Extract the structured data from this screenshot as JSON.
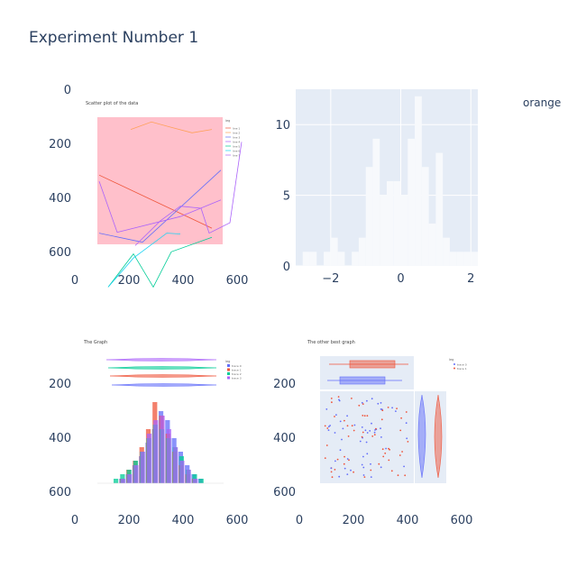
{
  "figure": {
    "title": "Experiment Number 1",
    "legend_label": "orange"
  },
  "chart_data": [
    {
      "id": "top-left",
      "type": "image",
      "description_axes": "image subplot",
      "xaxis": {
        "range": [
          0,
          640
        ],
        "ticks": [
          0,
          200,
          400,
          600
        ],
        "tick_labels": [
          "0",
          "200",
          "400",
          "600"
        ]
      },
      "yaxis": {
        "range": [
          0,
          640
        ],
        "reversed": true,
        "ticks": [
          0,
          200,
          400,
          600
        ],
        "tick_labels": [
          "0",
          "200",
          "400",
          "600"
        ]
      },
      "embedded": {
        "title": "Scatter plot of the data",
        "background": "#ffc0cb",
        "legend": {
          "title": "leg",
          "entries": [
            "line 1",
            "line 2",
            "line 3",
            "line 4",
            "line 5",
            "line 6",
            "line 7"
          ]
        },
        "lines": [
          {
            "color": "#ef553b",
            "points": [
              [
                110,
                270
              ],
              [
                235,
                398
              ]
            ]
          },
          {
            "color": "#ffa15a",
            "points": [
              [
                145,
                160
              ],
              [
                168,
                142
              ],
              [
                190,
                155
              ],
              [
                213,
                168
              ],
              [
                235,
                160
              ]
            ]
          },
          {
            "color": "#636efa",
            "points": [
              [
                110,
                410
              ],
              [
                158,
                432
              ],
              [
                245,
                258
              ]
            ]
          },
          {
            "color": "#ab63fa",
            "points": [
              [
                110,
                285
              ],
              [
                130,
                408
              ],
              [
                200,
                370
              ],
              [
                245,
                330
              ]
            ]
          },
          {
            "color": "#00cc96",
            "points": [
              [
                120,
                540
              ],
              [
                148,
                460
              ],
              [
                170,
                540
              ],
              [
                190,
                455
              ],
              [
                235,
                420
              ]
            ]
          },
          {
            "color": "#19d3f3",
            "points": [
              [
                120,
                540
              ],
              [
                148,
                470
              ],
              [
                185,
                410
              ],
              [
                200,
                412
              ]
            ]
          },
          {
            "color": "#ab63fa",
            "points": [
              [
                150,
                440
              ],
              [
                178,
                380
              ],
              [
                200,
                345
              ],
              [
                223,
                350
              ],
              [
                232,
                410
              ],
              [
                255,
                385
              ],
              [
                268,
                190
              ]
            ]
          }
        ]
      }
    },
    {
      "id": "top-right",
      "type": "histogram",
      "xaxis": {
        "range": [
          -3,
          2.2
        ],
        "ticks": [
          -2,
          0,
          2
        ],
        "tick_labels": [
          "−2",
          "0",
          "2"
        ]
      },
      "yaxis": {
        "range": [
          0,
          12.5
        ],
        "ticks": [
          0,
          5,
          10
        ],
        "tick_labels": [
          "0",
          "5",
          "10"
        ]
      },
      "bin_width": 0.2,
      "bins": [
        {
          "x": -2.8,
          "y": 1
        },
        {
          "x": -2.6,
          "y": 1
        },
        {
          "x": -2.4,
          "y": 0
        },
        {
          "x": -2.2,
          "y": 1
        },
        {
          "x": -2.0,
          "y": 2
        },
        {
          "x": -1.8,
          "y": 1
        },
        {
          "x": -1.6,
          "y": 0
        },
        {
          "x": -1.4,
          "y": 1
        },
        {
          "x": -1.2,
          "y": 2
        },
        {
          "x": -1.0,
          "y": 7
        },
        {
          "x": -0.8,
          "y": 9
        },
        {
          "x": -0.6,
          "y": 5
        },
        {
          "x": -0.4,
          "y": 6
        },
        {
          "x": -0.2,
          "y": 6
        },
        {
          "x": 0.0,
          "y": 5
        },
        {
          "x": 0.2,
          "y": 9
        },
        {
          "x": 0.4,
          "y": 12
        },
        {
          "x": 0.6,
          "y": 7
        },
        {
          "x": 0.8,
          "y": 3
        },
        {
          "x": 1.0,
          "y": 8
        },
        {
          "x": 1.2,
          "y": 2
        },
        {
          "x": 1.4,
          "y": 1
        },
        {
          "x": 1.6,
          "y": 1
        },
        {
          "x": 1.8,
          "y": 1
        },
        {
          "x": 2.0,
          "y": 1
        }
      ]
    },
    {
      "id": "bottom-left",
      "type": "image",
      "xaxis": {
        "range": [
          0,
          640
        ],
        "ticks": [
          0,
          200,
          400,
          600
        ],
        "tick_labels": [
          "0",
          "200",
          "400",
          "600"
        ]
      },
      "yaxis": {
        "range": [
          0,
          640
        ],
        "reversed": true,
        "ticks": [
          200,
          400,
          600
        ],
        "tick_labels": [
          "200",
          "400",
          "600"
        ]
      },
      "embedded": {
        "title": "The Graph",
        "legend": {
          "title": "leg",
          "entries": [
            "trace 0",
            "trace 1",
            "trace 2",
            "trace 3"
          ]
        },
        "hist_colors": [
          "#636efa",
          "#ef553b",
          "#00cc96",
          "#ab63fa"
        ],
        "violin_colors": [
          "#ab63fa",
          "#00cc96",
          "#ef553b",
          "#636efa"
        ]
      }
    },
    {
      "id": "bottom-right",
      "type": "image",
      "xaxis": {
        "range": [
          0,
          640
        ],
        "ticks": [
          0,
          200,
          400,
          600
        ],
        "tick_labels": [
          "0",
          "200",
          "400",
          "600"
        ]
      },
      "yaxis": {
        "range": [
          0,
          640
        ],
        "reversed": true,
        "ticks": [
          200,
          400,
          600
        ],
        "tick_labels": [
          "200",
          "400",
          "600"
        ]
      },
      "embedded": {
        "title": "The other best graph",
        "legend": {
          "title": "leg",
          "entries": [
            "trace 0",
            "trace 1"
          ]
        },
        "colors": [
          "#636efa",
          "#ef553b"
        ]
      }
    }
  ]
}
